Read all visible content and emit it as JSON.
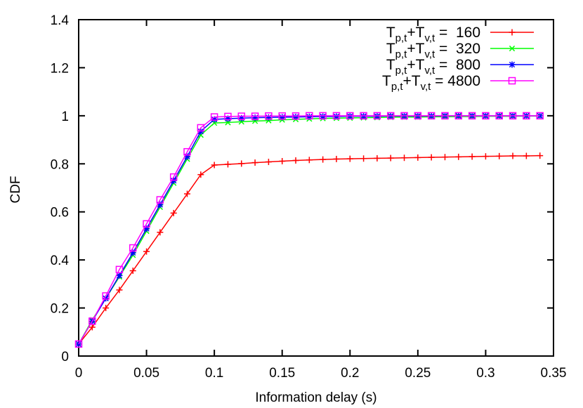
{
  "chart_data": {
    "type": "line",
    "title": "",
    "xlabel": "Information delay (s)",
    "ylabel": "CDF",
    "xlim": [
      0,
      0.35
    ],
    "ylim": [
      0,
      1.4
    ],
    "xticks": [
      "0",
      "0.05",
      "0.1",
      "0.15",
      "0.2",
      "0.25",
      "0.3",
      "0.35"
    ],
    "yticks": [
      "0",
      "0.2",
      "0.4",
      "0.6",
      "0.8",
      "1",
      "1.2",
      "1.4"
    ],
    "grid": false,
    "legend_position": "top-right",
    "legend_label": {
      "t1": "T",
      "s1": "p,t",
      "plus": "+",
      "t2": "T",
      "s2": "v,t",
      "eq": " = "
    },
    "x": [
      0,
      0.01,
      0.02,
      0.03,
      0.04,
      0.05,
      0.06,
      0.07,
      0.08,
      0.09,
      0.1,
      0.11,
      0.12,
      0.13,
      0.14,
      0.15,
      0.16,
      0.17,
      0.18,
      0.19,
      0.2,
      0.21,
      0.22,
      0.23,
      0.24,
      0.25,
      0.26,
      0.27,
      0.28,
      0.29,
      0.3,
      0.31,
      0.32,
      0.33,
      0.34
    ],
    "series": [
      {
        "name": "160",
        "color": "#ff0000",
        "marker": "plus",
        "values": [
          0.05,
          0.12,
          0.2,
          0.275,
          0.355,
          0.435,
          0.515,
          0.595,
          0.675,
          0.755,
          0.795,
          0.798,
          0.801,
          0.805,
          0.808,
          0.811,
          0.814,
          0.816,
          0.818,
          0.82,
          0.821,
          0.822,
          0.823,
          0.824,
          0.825,
          0.826,
          0.827,
          0.828,
          0.829,
          0.83,
          0.831,
          0.832,
          0.833,
          0.833,
          0.834
        ]
      },
      {
        "name": "320",
        "color": "#00ff00",
        "marker": "cross",
        "values": [
          0.05,
          0.15,
          0.24,
          0.33,
          0.42,
          0.52,
          0.62,
          0.72,
          0.82,
          0.92,
          0.97,
          0.972,
          0.975,
          0.978,
          0.98,
          0.983,
          0.985,
          0.987,
          0.989,
          0.99,
          0.991,
          0.992,
          0.993,
          0.994,
          0.995,
          0.995,
          0.996,
          0.996,
          0.997,
          0.997,
          0.998,
          0.998,
          0.998,
          0.999,
          0.999
        ]
      },
      {
        "name": "800",
        "color": "#0000ff",
        "marker": "star",
        "values": [
          0.05,
          0.145,
          0.24,
          0.335,
          0.43,
          0.53,
          0.63,
          0.73,
          0.83,
          0.935,
          0.985,
          0.988,
          0.99,
          0.992,
          0.993,
          0.994,
          0.995,
          0.996,
          0.997,
          0.997,
          0.998,
          0.998,
          0.998,
          0.999,
          0.999,
          0.999,
          0.999,
          1.0,
          1.0,
          1.0,
          1.0,
          1.0,
          1.0,
          1.0,
          1.0
        ]
      },
      {
        "name": "4800",
        "color": "#ff00ff",
        "marker": "square",
        "values": [
          0.05,
          0.145,
          0.25,
          0.36,
          0.45,
          0.55,
          0.65,
          0.745,
          0.85,
          0.95,
          0.995,
          0.997,
          0.998,
          0.998,
          0.999,
          0.999,
          0.999,
          1.0,
          1.0,
          1.0,
          1.0,
          1.0,
          1.0,
          1.0,
          1.0,
          1.0,
          1.0,
          1.0,
          1.0,
          1.0,
          1.0,
          1.0,
          1.0,
          1.0,
          1.0
        ]
      }
    ]
  }
}
